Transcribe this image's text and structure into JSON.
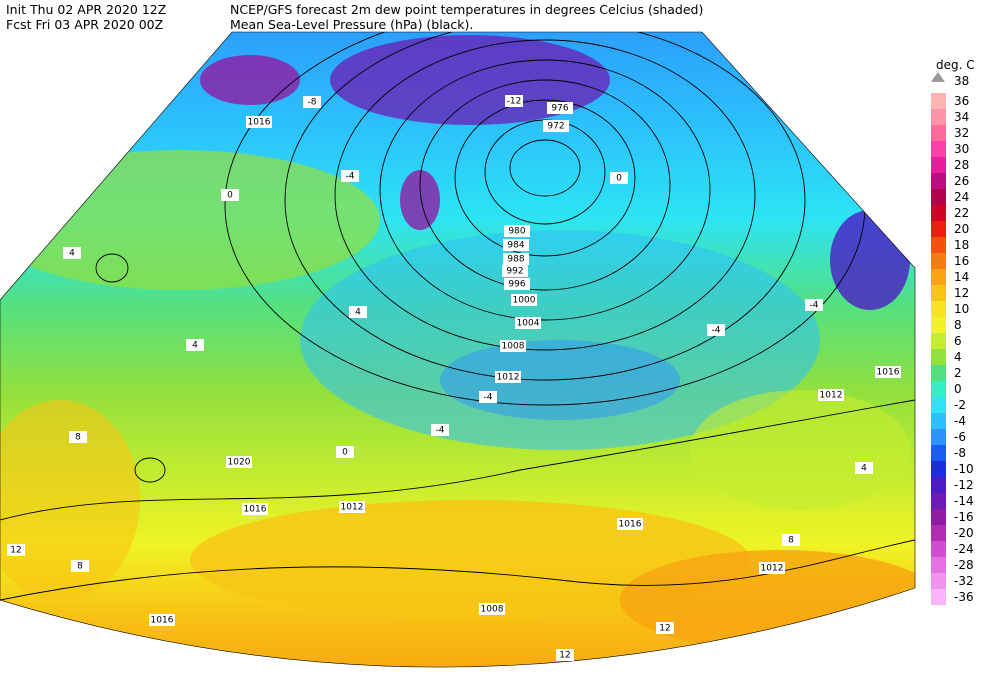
{
  "header": {
    "init": "Init  Thu 02 APR 2020 12Z",
    "fcst": "Fcst Fri 03 APR 2020 00Z",
    "title": "NCEP/GFS forecast 2m dew point temperatures in degrees Celcius (shaded)",
    "subtitle": "Mean Sea-Level Pressure (hPa) (black)."
  },
  "legend": {
    "unit": "deg. C",
    "top": 38,
    "levels": [
      {
        "value": 36,
        "color": "#ffb4b4"
      },
      {
        "value": 34,
        "color": "#ff94a8"
      },
      {
        "value": 32,
        "color": "#ff6c9c"
      },
      {
        "value": 30,
        "color": "#ff40a8"
      },
      {
        "value": 28,
        "color": "#e81c9c"
      },
      {
        "value": 26,
        "color": "#c00c84"
      },
      {
        "value": 24,
        "color": "#b4004c"
      },
      {
        "value": 22,
        "color": "#d40024"
      },
      {
        "value": 20,
        "color": "#f01c10"
      },
      {
        "value": 18,
        "color": "#f45010"
      },
      {
        "value": 16,
        "color": "#f47c10"
      },
      {
        "value": 14,
        "color": "#f8a410"
      },
      {
        "value": 12,
        "color": "#f8c414"
      },
      {
        "value": 10,
        "color": "#f8e41c"
      },
      {
        "value": 8,
        "color": "#f0f424"
      },
      {
        "value": 6,
        "color": "#c4ec30"
      },
      {
        "value": 4,
        "color": "#94e03c"
      },
      {
        "value": 2,
        "color": "#54e080"
      },
      {
        "value": 0,
        "color": "#30f0c4"
      },
      {
        "value": -2,
        "color": "#2ce4f4"
      },
      {
        "value": -4,
        "color": "#2cc0fc"
      },
      {
        "value": -6,
        "color": "#2c94fc"
      },
      {
        "value": -8,
        "color": "#1c5cf0"
      },
      {
        "value": -10,
        "color": "#1c2ce0"
      },
      {
        "value": -12,
        "color": "#4c1cc4"
      },
      {
        "value": -14,
        "color": "#6c1cb4"
      },
      {
        "value": -16,
        "color": "#901ca4"
      },
      {
        "value": -20,
        "color": "#b02cb0"
      },
      {
        "value": -24,
        "color": "#d04cd0"
      },
      {
        "value": -28,
        "color": "#e470e4"
      },
      {
        "value": -32,
        "color": "#f094f0"
      },
      {
        "value": -36,
        "color": "#f8b4f8"
      }
    ]
  },
  "isobar_labels": [
    976,
    972,
    980,
    984,
    988,
    992,
    996,
    1000,
    1004,
    1008,
    1012,
    1016,
    1020,
    1016,
    1012,
    1016,
    1012,
    1008,
    1016,
    1012,
    1016
  ],
  "dewpoint_labels": [
    -4,
    0,
    4,
    4,
    8,
    12,
    8,
    12,
    12,
    -4,
    -4,
    -4,
    -4,
    0,
    -12,
    -8,
    4,
    8,
    4,
    0
  ]
}
